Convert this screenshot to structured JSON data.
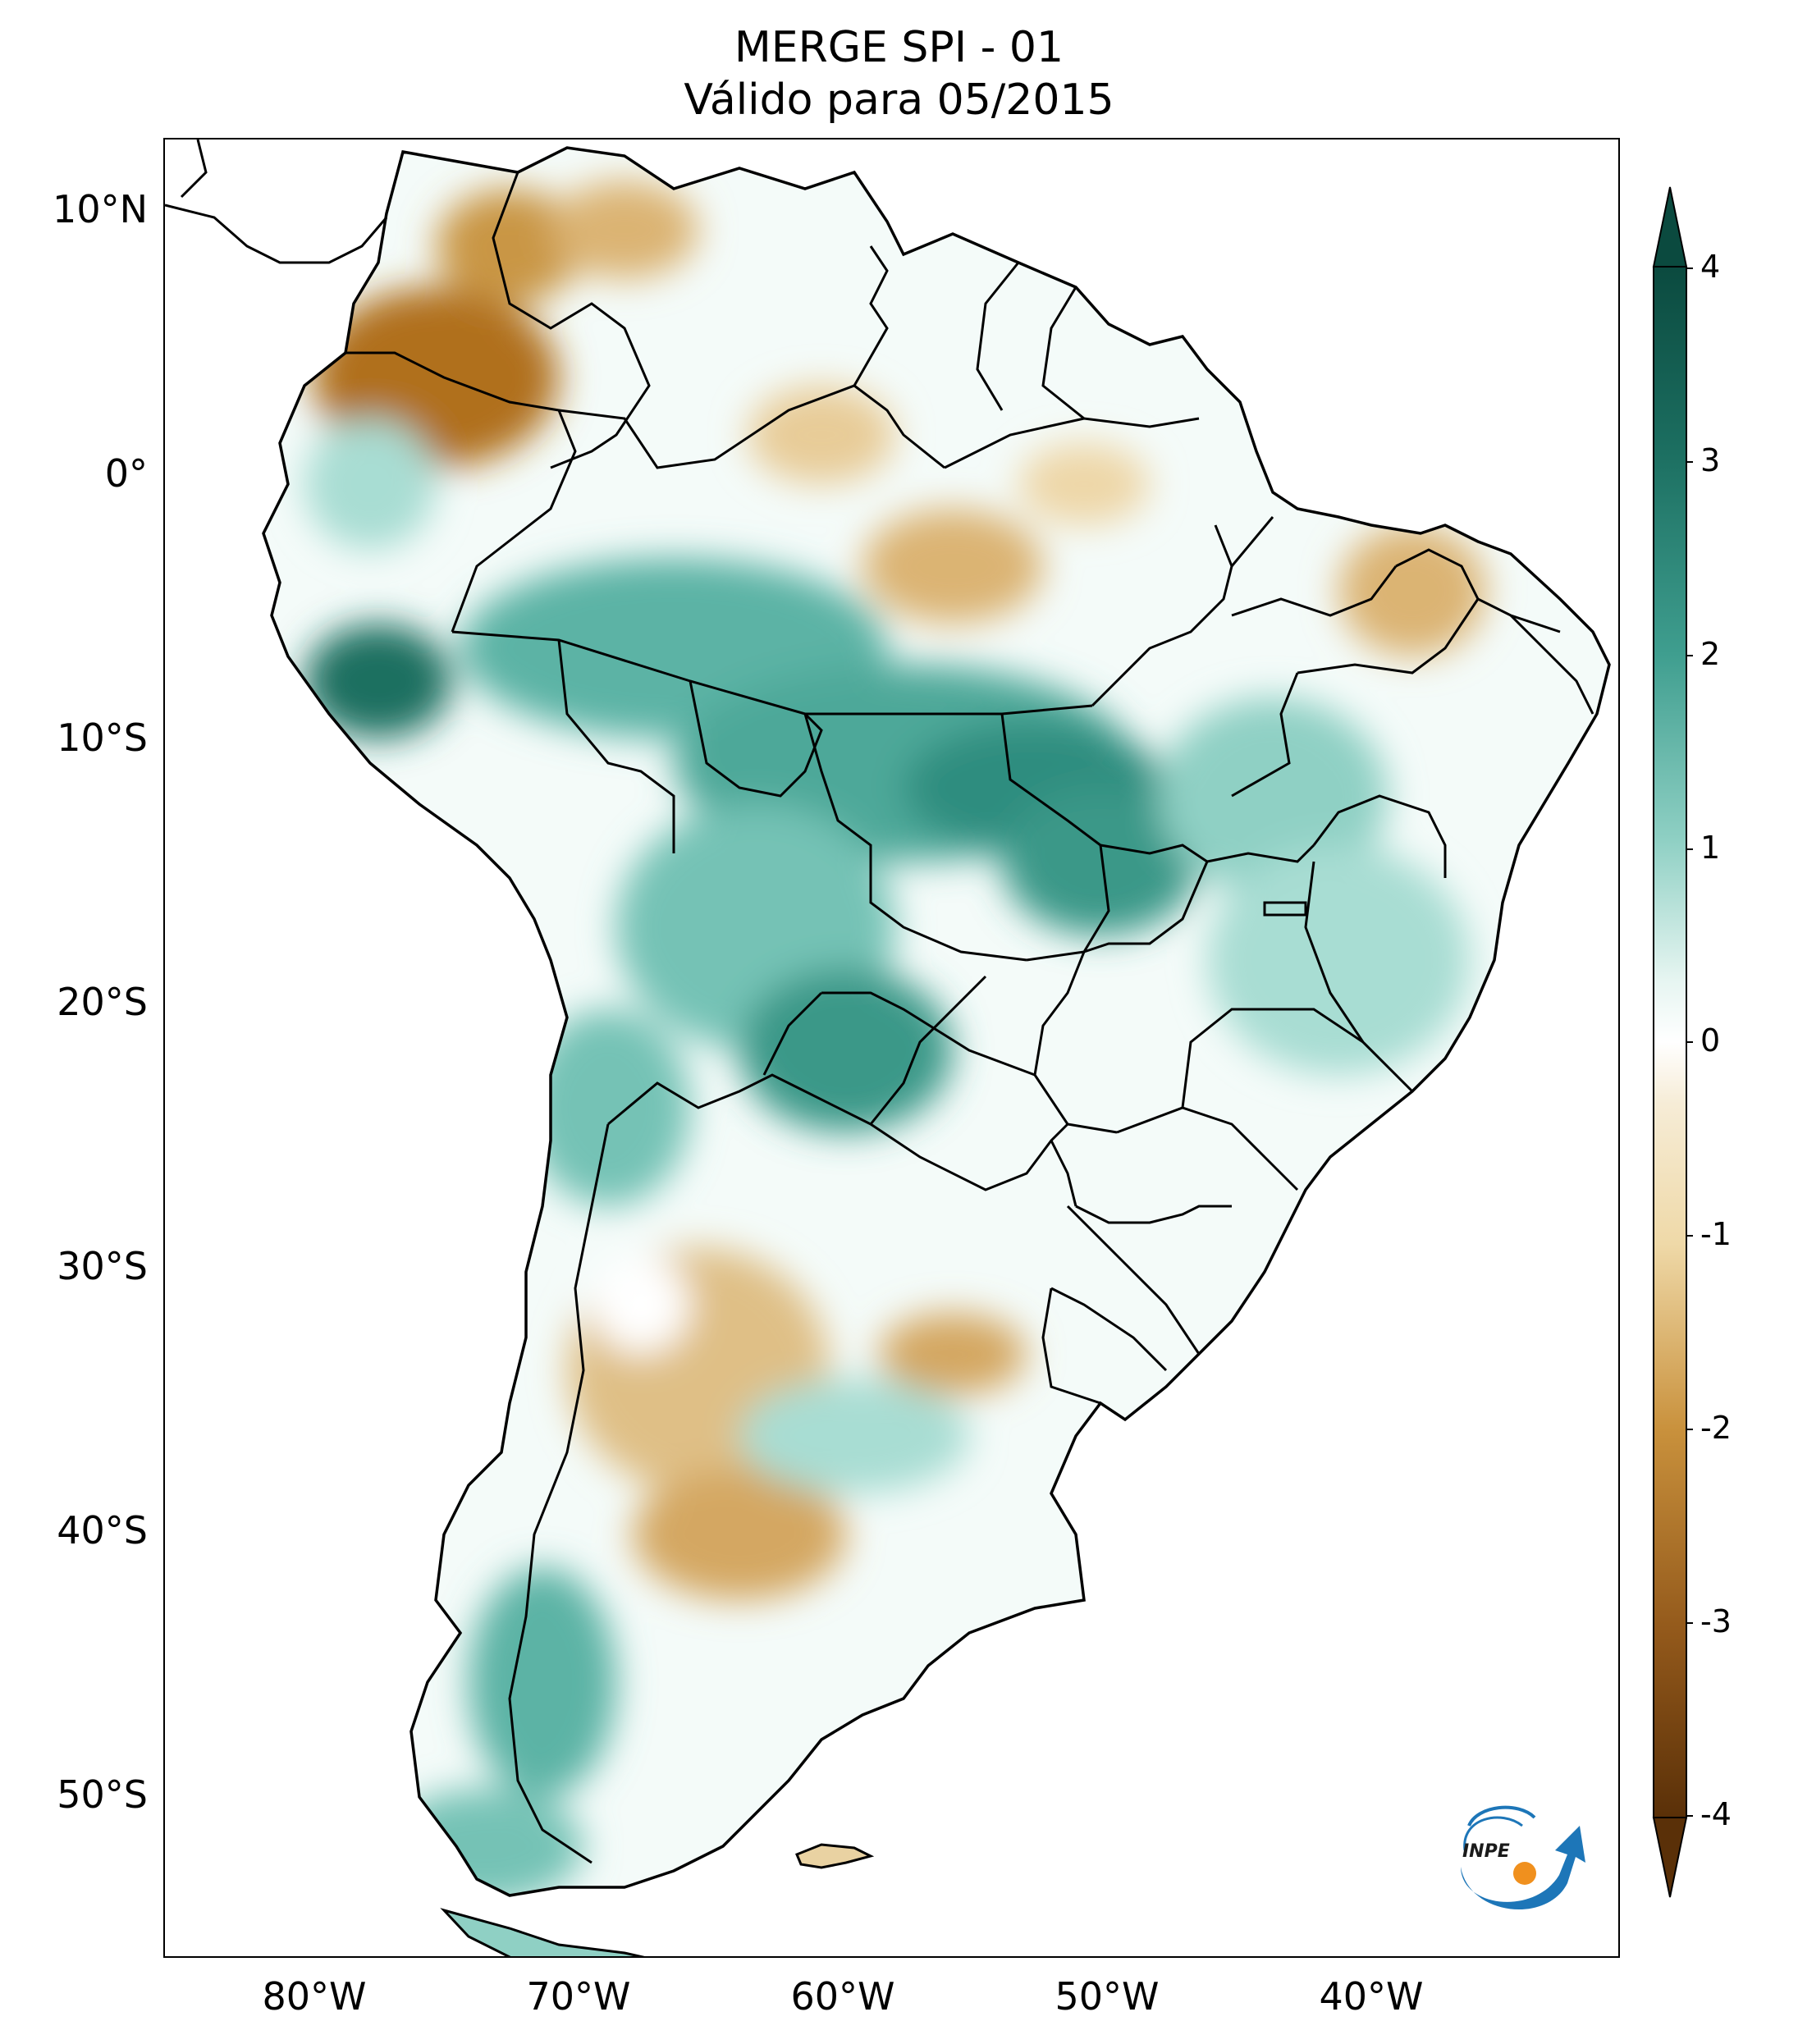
{
  "title": {
    "line1": "MERGE   SPI - 01",
    "line2": "Válido para 05/2015"
  },
  "axes": {
    "lat_labels": [
      "10°N",
      "0°",
      "10°S",
      "20°S",
      "30°S",
      "40°S",
      "50°S"
    ],
    "lon_labels": [
      "80°W",
      "70°W",
      "60°W",
      "50°W",
      "40°W"
    ]
  },
  "colorbar": {
    "ticks": [
      "4",
      "3",
      "2",
      "1",
      "0",
      "-1",
      "-2",
      "-3",
      "-4"
    ],
    "colors": {
      "very_wet": "#0b4a3f",
      "wet": "#3f9e8f",
      "moist": "#a8ddd3",
      "neutral": "#ffffff",
      "dry": "#efd9a8",
      "very_dry": "#c9913c",
      "extreme_dry": "#5a3008"
    }
  },
  "logo": {
    "text": "INPE"
  }
}
